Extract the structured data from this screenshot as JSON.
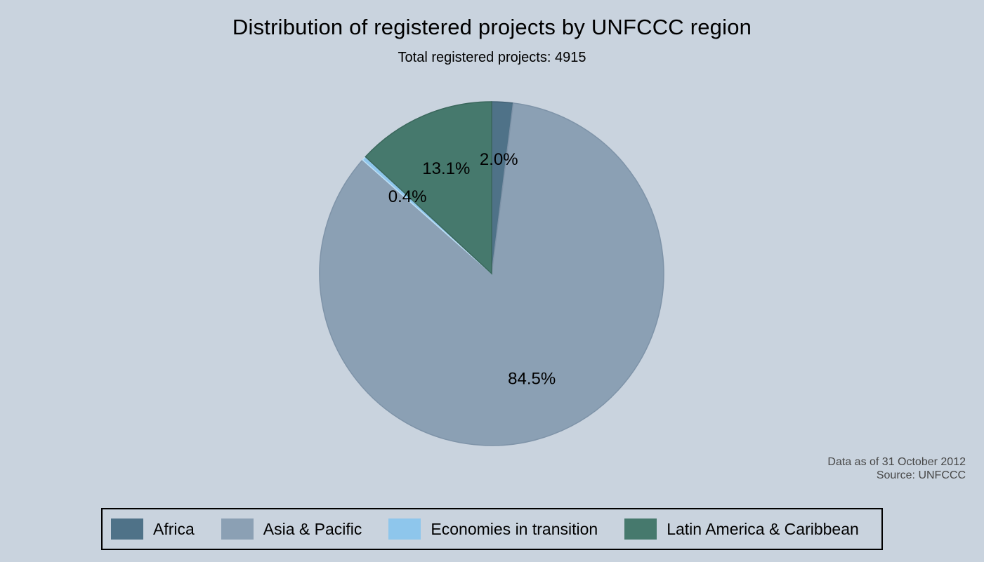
{
  "title": "Distribution of registered projects by UNFCCC region",
  "subtitle": "Total registered projects: 4915",
  "note": {
    "line1": "Data as of 31 October 2012",
    "line2": "Source: UNFCCC"
  },
  "colors": {
    "background": "#c9d3de",
    "legend_border": "#000000",
    "slice_label_text": "#000000",
    "note_text": "#474747"
  },
  "chart_data": {
    "type": "pie",
    "title": "Distribution of registered projects by UNFCCC region",
    "subtitle": "Total registered projects: 4915",
    "total_registered_projects": 4915,
    "start_position": "12-o-clock",
    "direction": "clockwise",
    "label_format": "percent",
    "label_radius_fraction": 0.66,
    "legend_position": "bottom",
    "slices": [
      {
        "label": "Africa",
        "percent": 2.0,
        "display_label": "2.0%",
        "color": "#4f7288",
        "border_color": "#426175"
      },
      {
        "label": "Asia & Pacific",
        "percent": 84.5,
        "display_label": "84.5%",
        "color": "#8ba0b4",
        "border_color": "#7e93a8"
      },
      {
        "label": "Economies in transition",
        "percent": 0.4,
        "display_label": "0.4%",
        "color": "#8ec6ec",
        "border_color": "#bddff5"
      },
      {
        "label": "Latin America & Caribbean",
        "percent": 13.1,
        "display_label": "13.1%",
        "color": "#46796d",
        "border_color": "#3a675c"
      }
    ]
  }
}
